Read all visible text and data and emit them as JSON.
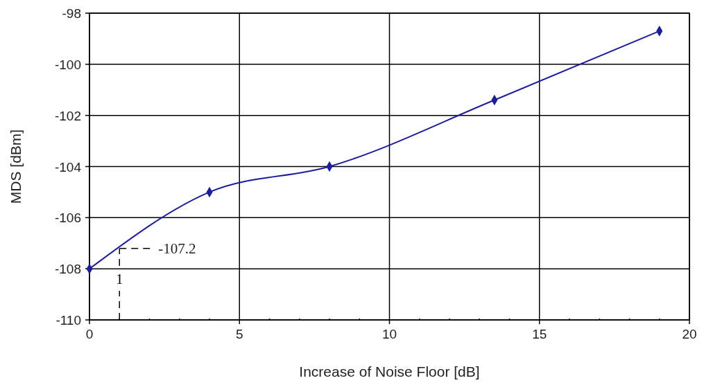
{
  "chart_data": {
    "type": "line",
    "xlabel": "Increase of Noise Floor [dB]",
    "ylabel": "MDS [dBm]",
    "x": [
      0,
      4,
      8,
      13.5,
      19
    ],
    "series": [
      {
        "color": "#1c1ca0",
        "values": [
          -108,
          -105,
          -104,
          -101.4,
          -98.7
        ]
      }
    ],
    "xlim": [
      0,
      20
    ],
    "ylim": [
      -110,
      -98
    ],
    "xticks": [
      0,
      {
        "value": 1,
        "label": null
      },
      {
        "value": 2,
        "label": null
      },
      {
        "value": 3,
        "label": null
      },
      {
        "value": 4,
        "label": null
      },
      5,
      {
        "value": 6,
        "label": null
      },
      {
        "value": 7,
        "label": null
      },
      {
        "value": 8,
        "label": null
      },
      {
        "value": 9,
        "label": null
      },
      10,
      {
        "value": 11,
        "label": null
      },
      {
        "value": 12,
        "label": null
      },
      {
        "value": 13,
        "label": null
      },
      {
        "value": 14,
        "label": null
      },
      15,
      {
        "value": 16,
        "label": null
      },
      {
        "value": 17,
        "label": null
      },
      {
        "value": 18,
        "label": null
      },
      {
        "value": 19,
        "label": null
      },
      20
    ],
    "yticks": [
      -110,
      -108,
      -106,
      -104,
      -102,
      -100,
      -98
    ],
    "grid": true,
    "marker": "diamond",
    "line_style": "solid",
    "annotations": [
      {
        "text": "-107.2",
        "x": 1,
        "y": -107.2
      },
      {
        "text": "1",
        "x": 1,
        "y": -107.2
      }
    ]
  }
}
